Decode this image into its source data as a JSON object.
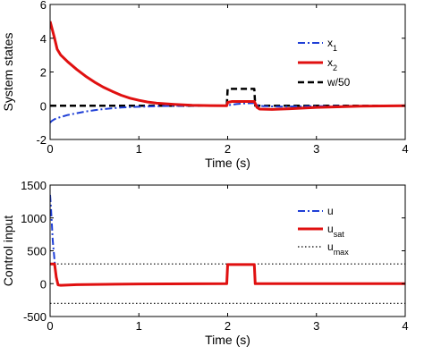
{
  "chart_data": [
    {
      "type": "line",
      "xlabel": "Time (s)",
      "ylabel": "System states",
      "xlim": [
        0,
        4
      ],
      "ylim": [
        -2,
        6
      ],
      "xticks": [
        0,
        1,
        2,
        3,
        4
      ],
      "yticks": [
        -2,
        0,
        2,
        4,
        6
      ],
      "grid": false,
      "legend_position": "top-right",
      "series": [
        {
          "name": "x",
          "name_sub": "1",
          "color": "#1f3fd6",
          "style": "dashdot",
          "points": [
            [
              0,
              -1.0
            ],
            [
              0.02,
              -0.9
            ],
            [
              0.05,
              -0.8
            ],
            [
              0.1,
              -0.7
            ],
            [
              0.2,
              -0.55
            ],
            [
              0.3,
              -0.44
            ],
            [
              0.4,
              -0.34
            ],
            [
              0.5,
              -0.27
            ],
            [
              0.6,
              -0.2
            ],
            [
              0.7,
              -0.15
            ],
            [
              0.8,
              -0.11
            ],
            [
              0.9,
              -0.08
            ],
            [
              1.0,
              -0.06
            ],
            [
              1.2,
              -0.03
            ],
            [
              1.4,
              -0.01
            ],
            [
              1.6,
              0
            ],
            [
              1.99,
              0
            ],
            [
              2.0,
              0.03
            ],
            [
              2.1,
              0.1
            ],
            [
              2.2,
              0.14
            ],
            [
              2.3,
              0.16
            ],
            [
              2.33,
              0.05
            ],
            [
              2.4,
              -0.03
            ],
            [
              2.6,
              -0.05
            ],
            [
              3.0,
              -0.03
            ],
            [
              3.5,
              -0.01
            ],
            [
              4.0,
              0
            ]
          ]
        },
        {
          "name": "x",
          "name_sub": "2",
          "color": "#e01010",
          "style": "solid",
          "points": [
            [
              0,
              5.0
            ],
            [
              0.02,
              4.6
            ],
            [
              0.05,
              4.0
            ],
            [
              0.08,
              3.35
            ],
            [
              0.12,
              3.0
            ],
            [
              0.2,
              2.6
            ],
            [
              0.3,
              2.15
            ],
            [
              0.4,
              1.75
            ],
            [
              0.5,
              1.4
            ],
            [
              0.6,
              1.1
            ],
            [
              0.7,
              0.85
            ],
            [
              0.8,
              0.62
            ],
            [
              0.9,
              0.45
            ],
            [
              1.0,
              0.32
            ],
            [
              1.1,
              0.22
            ],
            [
              1.2,
              0.15
            ],
            [
              1.4,
              0.08
            ],
            [
              1.6,
              0.03
            ],
            [
              1.8,
              0.01
            ],
            [
              1.99,
              0
            ],
            [
              2.0,
              0.2
            ],
            [
              2.05,
              0.25
            ],
            [
              2.3,
              0.25
            ],
            [
              2.33,
              -0.1
            ],
            [
              2.36,
              -0.2
            ],
            [
              2.5,
              -0.22
            ],
            [
              2.7,
              -0.18
            ],
            [
              3.0,
              -0.1
            ],
            [
              3.5,
              -0.03
            ],
            [
              4.0,
              0
            ]
          ]
        },
        {
          "name": "w/50",
          "color": "#000000",
          "style": "dashed",
          "points": [
            [
              0,
              0
            ],
            [
              1.99,
              0
            ],
            [
              2.0,
              1.0
            ],
            [
              2.3,
              1.0
            ],
            [
              2.31,
              0
            ],
            [
              4.0,
              0
            ]
          ]
        }
      ]
    },
    {
      "type": "line",
      "xlabel": "Time (s)",
      "ylabel": "Control input",
      "xlim": [
        0,
        4
      ],
      "ylim": [
        -500,
        1500
      ],
      "xticks": [
        0,
        1,
        2,
        3,
        4
      ],
      "yticks": [
        -500,
        0,
        500,
        1000,
        1500
      ],
      "grid": false,
      "legend_position": "top-right",
      "series": [
        {
          "name": "u",
          "color": "#1f3fd6",
          "style": "dashdot",
          "points": [
            [
              0,
              1350
            ],
            [
              0.01,
              1150
            ],
            [
              0.02,
              900
            ],
            [
              0.03,
              650
            ],
            [
              0.05,
              350
            ],
            [
              0.07,
              100
            ],
            [
              0.09,
              -20
            ],
            [
              0.12,
              -25
            ],
            [
              0.3,
              -15
            ],
            [
              1.0,
              -5
            ],
            [
              1.99,
              0
            ],
            [
              2.0,
              290
            ],
            [
              2.3,
              290
            ],
            [
              2.31,
              0
            ],
            [
              4.0,
              0
            ]
          ]
        },
        {
          "name": "u",
          "name_sub": "sat",
          "color": "#e01010",
          "style": "solid",
          "points": [
            [
              0,
              300
            ],
            [
              0.05,
              300
            ],
            [
              0.07,
              100
            ],
            [
              0.09,
              -20
            ],
            [
              0.12,
              -25
            ],
            [
              0.3,
              -15
            ],
            [
              1.0,
              -5
            ],
            [
              1.99,
              0
            ],
            [
              2.0,
              290
            ],
            [
              2.3,
              290
            ],
            [
              2.31,
              0
            ],
            [
              4.0,
              0
            ]
          ]
        },
        {
          "name": "u",
          "name_sub": "max",
          "color": "#000000",
          "style": "dotted",
          "points": [
            [
              0,
              300
            ],
            [
              4,
              300
            ]
          ],
          "mirror_points": [
            [
              0,
              -300
            ],
            [
              4,
              -300
            ]
          ]
        }
      ]
    }
  ]
}
